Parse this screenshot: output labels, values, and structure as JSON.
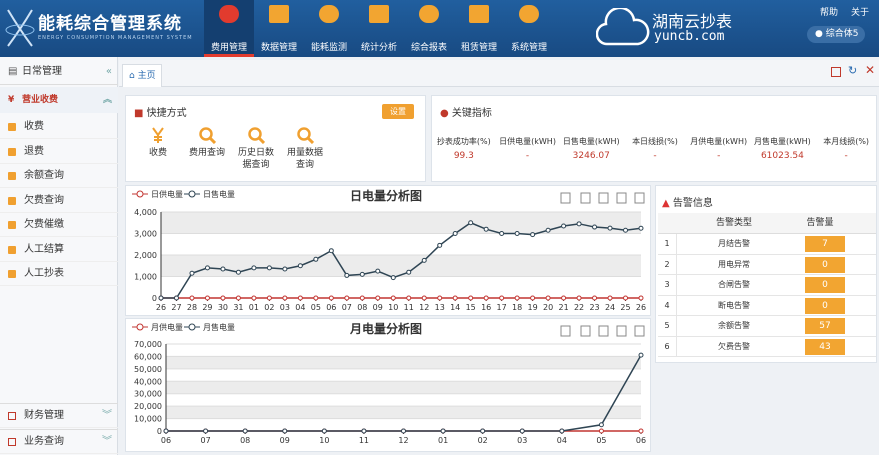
{
  "header": {
    "title": "能耗综合管理系统",
    "subtitle": "ENERGY CONSUMPTION MANAGEMENT SYSTEM",
    "nav": [
      "费用管理",
      "数据管理",
      "能耗监测",
      "统计分析",
      "综合报表",
      "租赁管理",
      "系统管理"
    ],
    "brand": "湖南云抄表",
    "domain": "yuncb.com",
    "links": [
      "帮助",
      "关于"
    ],
    "user": "综合体5"
  },
  "sidebar": {
    "title": "日常管理",
    "section": "营业收费",
    "items": [
      "收费",
      "退费",
      "余额查询",
      "欠费查询",
      "欠费催缴",
      "人工结算",
      "人工抄表"
    ],
    "groups": [
      "财务管理",
      "业务查询"
    ]
  },
  "tab": "主页",
  "quick": {
    "title": "快捷方式",
    "button": "设置",
    "items": [
      "收费",
      "费用查询",
      "历史日数据查询",
      "用量数据查询"
    ]
  },
  "kpi": {
    "title": "关键指标",
    "items": [
      {
        "label": "抄表成功率(%)",
        "value": 99.3
      },
      {
        "label": "日供电量(kWH)",
        "value": "-"
      },
      {
        "label": "日售电量(kWH)",
        "value": 3246.07
      },
      {
        "label": "本日线损(%)",
        "value": "-"
      },
      {
        "label": "月供电量(kWH)",
        "value": "-"
      },
      {
        "label": "月售电量(kWH)",
        "value": 61023.54
      },
      {
        "label": "本月线损(%)",
        "value": "-"
      }
    ]
  },
  "alarms": {
    "title": "告警信息",
    "columns": [
      "告警类型",
      "告警量"
    ],
    "rows": [
      {
        "index": 1,
        "type": "月结告警",
        "count": 7
      },
      {
        "index": 2,
        "type": "用电异常",
        "count": 0
      },
      {
        "index": 3,
        "type": "合闸告警",
        "count": 0
      },
      {
        "index": 4,
        "type": "断电告警",
        "count": 0
      },
      {
        "index": 5,
        "type": "余额告警",
        "count": 57
      },
      {
        "index": 6,
        "type": "欠费告警",
        "count": 43
      }
    ]
  },
  "chart_data": [
    {
      "type": "line",
      "title": "日电量分析图",
      "categories": [
        "26",
        "27",
        "28",
        "29",
        "30",
        "31",
        "01",
        "02",
        "03",
        "04",
        "05",
        "06",
        "07",
        "08",
        "09",
        "10",
        "11",
        "12",
        "13",
        "14",
        "15",
        "16",
        "17",
        "18",
        "19",
        "20",
        "21",
        "22",
        "23",
        "24",
        "25",
        "26"
      ],
      "series": [
        {
          "name": "日供电量",
          "color": "#c23531",
          "values": [
            0,
            0,
            0,
            0,
            0,
            0,
            0,
            0,
            0,
            0,
            0,
            0,
            0,
            0,
            0,
            0,
            0,
            0,
            0,
            0,
            0,
            0,
            0,
            0,
            0,
            0,
            0,
            0,
            0,
            0,
            0,
            0
          ]
        },
        {
          "name": "日售电量",
          "color": "#2f4554",
          "values": [
            0,
            0,
            1150,
            1400,
            1350,
            1200,
            1400,
            1400,
            1350,
            1500,
            1800,
            2200,
            1050,
            1100,
            1250,
            950,
            1200,
            1750,
            2450,
            3000,
            3500,
            3200,
            3000,
            3000,
            2950,
            3150,
            3350,
            3450,
            3300,
            3250,
            3150,
            3246
          ]
        }
      ],
      "ylim": [
        0,
        4000
      ],
      "yticks": [
        0,
        {
          "value": 1000,
          "label": "1,000"
        },
        {
          "value": 2000,
          "label": "2,000"
        },
        {
          "value": 3000,
          "label": "3,000"
        },
        {
          "value": 4000,
          "label": "4,000"
        }
      ],
      "grid": true,
      "legend": "top-left"
    },
    {
      "type": "line",
      "title": "月电量分析图",
      "categories": [
        "06",
        "07",
        "08",
        "09",
        "10",
        "11",
        "12",
        "01",
        "02",
        "03",
        "04",
        "05",
        "06"
      ],
      "series": [
        {
          "name": "月供电量",
          "color": "#c23531",
          "values": [
            0,
            0,
            0,
            0,
            0,
            0,
            0,
            0,
            0,
            0,
            0,
            0,
            0
          ]
        },
        {
          "name": "月售电量",
          "color": "#2f4554",
          "values": [
            0,
            0,
            0,
            0,
            0,
            0,
            0,
            0,
            0,
            0,
            0,
            5000,
            61024
          ]
        }
      ],
      "ylim": [
        0,
        70000
      ],
      "yticks": [
        0,
        {
          "value": 10000,
          "label": "10,000"
        },
        {
          "value": 20000,
          "label": "20,000"
        },
        {
          "value": 30000,
          "label": "30,000"
        },
        {
          "value": 40000,
          "label": "40,000"
        },
        {
          "value": 50000,
          "label": "50,000"
        },
        {
          "value": 60000,
          "label": "60,000"
        },
        {
          "value": 70000,
          "label": "70,000"
        }
      ],
      "grid": true,
      "legend": "top-left"
    }
  ]
}
